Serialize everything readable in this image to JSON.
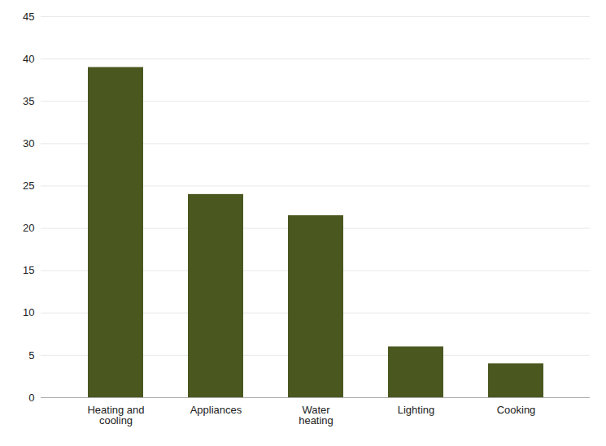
{
  "chart_data": {
    "type": "bar",
    "categories": [
      "Heating and\ncooling",
      "Appliances",
      "Water\nheating",
      "Lighting",
      "Cooking"
    ],
    "values": [
      39,
      24,
      21.5,
      6,
      4
    ],
    "color": "#4a5820",
    "ylim": [
      0,
      45
    ],
    "yticks": [
      0,
      5,
      10,
      15,
      20,
      25,
      30,
      35,
      40,
      45
    ],
    "grid": true
  }
}
